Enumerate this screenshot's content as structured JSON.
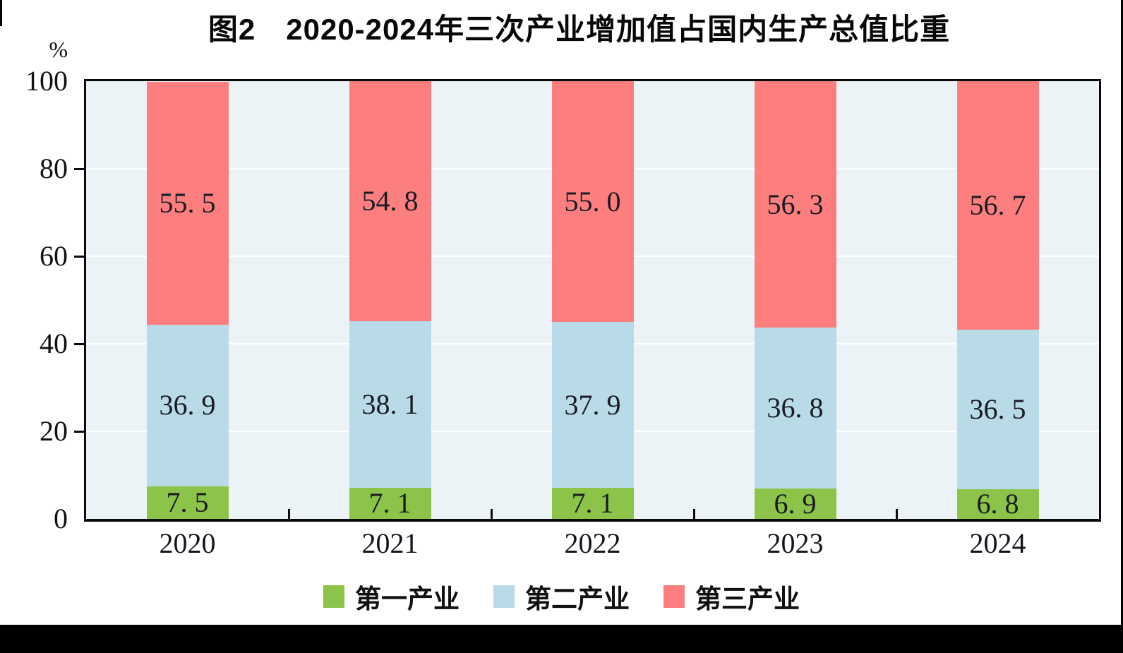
{
  "title": "图2　2020-2024年三次产业增加值占国内生产总值比重",
  "y_axis": {
    "unit": "%",
    "tick_labels": [
      "0",
      "20",
      "40",
      "60",
      "80",
      "100"
    ]
  },
  "legend": [
    {
      "key": "primary",
      "label": "第一产业",
      "color": "#8CC44A"
    },
    {
      "key": "secondary",
      "label": "第二产业",
      "color": "#B9DBE8"
    },
    {
      "key": "tertiary",
      "label": "第三产业",
      "color": "#FC7E7E"
    }
  ],
  "colors": {
    "plot_background": "#ECF3F7",
    "gridline": "#ffffff",
    "axis": "#0b0b0b",
    "data_label": "#1b1b24",
    "primary": "#8CC44A",
    "secondary": "#B9DBE8",
    "tertiary": "#FC7E7E"
  },
  "chart_data": {
    "type": "bar",
    "stacked": true,
    "title": "图2　2020-2024年三次产业增加值占国内生产总值比重",
    "ylabel": "%",
    "ylim": [
      0,
      100
    ],
    "yticks": [
      0,
      20,
      40,
      60,
      80,
      100
    ],
    "grid": true,
    "legend_position": "bottom",
    "categories": [
      "2020",
      "2021",
      "2022",
      "2023",
      "2024"
    ],
    "series": [
      {
        "key": "primary",
        "name": "第一产业",
        "color": "#8CC44A",
        "values": [
          7.5,
          7.1,
          7.1,
          6.9,
          6.8
        ],
        "labels": [
          "7. 5",
          "7. 1",
          "7. 1",
          "6. 9",
          "6. 8"
        ]
      },
      {
        "key": "secondary",
        "name": "第二产业",
        "color": "#B9DBE8",
        "values": [
          36.9,
          38.1,
          37.9,
          36.8,
          36.5
        ],
        "labels": [
          "36. 9",
          "38. 1",
          "37. 9",
          "36. 8",
          "36. 5"
        ]
      },
      {
        "key": "tertiary",
        "name": "第三产业",
        "color": "#FC7E7E",
        "values": [
          55.5,
          54.8,
          55.0,
          56.3,
          56.7
        ],
        "labels": [
          "55. 5",
          "54. 8",
          "55. 0",
          "56. 3",
          "56. 7"
        ]
      }
    ]
  }
}
